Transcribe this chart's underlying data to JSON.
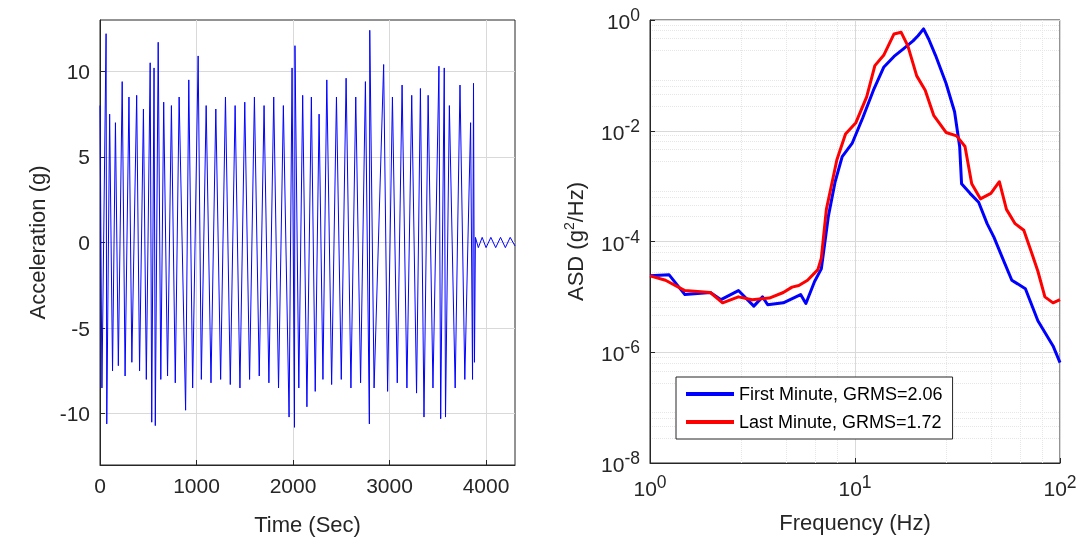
{
  "chart_data": [
    {
      "type": "line",
      "xlabel": "Time (Sec)",
      "ylabel": "Acceleration (g)",
      "color": "#0000ff",
      "xlim": [
        0,
        4300
      ],
      "ylim": [
        -13,
        13
      ],
      "xticks": [
        0,
        1000,
        2000,
        3000,
        4000
      ],
      "yticks": [
        -10,
        -5,
        0,
        5,
        10
      ],
      "grid": true,
      "x": [
        0,
        20,
        63,
        70,
        100,
        130,
        160,
        190,
        230,
        260,
        300,
        330,
        380,
        410,
        450,
        480,
        520,
        536,
        560,
        573,
        603,
        630,
        660,
        700,
        740,
        780,
        820,
        887,
        920,
        960,
        1017,
        1050,
        1100,
        1150,
        1200,
        1250,
        1300,
        1350,
        1400,
        1450,
        1500,
        1550,
        1600,
        1650,
        1700,
        1750,
        1800,
        1850,
        1900,
        1959,
        1990,
        2015,
        2020,
        2060,
        2100,
        2144,
        2190,
        2230,
        2270,
        2310,
        2350,
        2400,
        2450,
        2500,
        2550,
        2600,
        2650,
        2700,
        2750,
        2791,
        2795,
        2840,
        2939,
        2980,
        3030,
        3080,
        3130,
        3180,
        3230,
        3280,
        3320,
        3357,
        3400,
        3450,
        3512,
        3530,
        3567,
        3580,
        3620,
        3680,
        3730,
        3780,
        3840,
        3860,
        3870,
        3880,
        3890,
        3920,
        3960,
        4000,
        4050,
        4100,
        4150,
        4200,
        4250,
        4300
      ],
      "values": [
        8,
        -8.5,
        12.2,
        -10.6,
        7.5,
        -7.5,
        7,
        -7.2,
        9.4,
        -7.8,
        8.5,
        -7,
        8.6,
        -7.5,
        7.8,
        -8,
        10.5,
        -10.5,
        10.2,
        -10.7,
        11.7,
        -8,
        8.2,
        -7.8,
        8,
        -8.2,
        8.5,
        -9.8,
        9.5,
        -8.5,
        10.9,
        -8,
        8,
        -8.2,
        7.8,
        -8,
        8.5,
        -8.3,
        8,
        -8.5,
        8.2,
        -8,
        8.5,
        -7.8,
        8,
        -8.2,
        8.5,
        -8.5,
        8,
        -10.2,
        10.2,
        -10.8,
        11.5,
        -8.5,
        8.6,
        -9.6,
        8.5,
        -8.7,
        7.5,
        -8,
        9.5,
        -8.3,
        8.5,
        -8,
        9.6,
        -8.5,
        8.5,
        -8.2,
        9.4,
        -10.6,
        12.4,
        -8.5,
        10.4,
        -8.7,
        8.5,
        -8.2,
        9.2,
        -8.5,
        8.6,
        -8.8,
        9,
        -10.2,
        8.6,
        -8.5,
        10.3,
        -10.3,
        10.2,
        -10.2,
        8,
        -8.5,
        9.2,
        -8,
        7,
        -8,
        9.3,
        -7,
        0.3,
        -0.3,
        0.3,
        -0.3,
        0.3,
        -0.3,
        0.3,
        -0.3,
        0.3,
        -0.2
      ]
    },
    {
      "type": "line",
      "xlabel": "Frequency (Hz)",
      "ylabel": "ASD (g$^{2}$/Hz)",
      "log": "xy",
      "xlim": [
        1,
        100
      ],
      "ylim": [
        1e-08,
        1
      ],
      "xticks": [
        {
          "value": 1,
          "label": "10$^{0}$"
        },
        {
          "value": 10,
          "label": "10$^{1}$"
        },
        {
          "value": 100,
          "label": "10$^{2}$"
        }
      ],
      "yticks": [
        {
          "value": 1e-08,
          "label": "10$^{-8}$"
        },
        {
          "value": 1e-06,
          "label": "10$^{-6}$"
        },
        {
          "value": 0.0001,
          "label": "10$^{-4}$"
        },
        {
          "value": 0.01,
          "label": "10$^{-2}$"
        },
        {
          "value": 1,
          "label": "10$^{0}$"
        }
      ],
      "grid": true,
      "legend": "bottom left",
      "series": [
        {
          "name": "First Minute, GRMS=2.06",
          "color": "#0000ff",
          "x": [
            1,
            1.24,
            1.48,
            1.97,
            2.22,
            2.7,
            3.21,
            3.54,
            3.75,
            4.47,
            5.43,
            5.76,
            6.35,
            6.85,
            7.42,
            8.0,
            8.66,
            9.7,
            10.9,
            12.3,
            13.8,
            15.5,
            17.4,
            19.2,
            20.3,
            21.6,
            22.9,
            24.7,
            27.8,
            30.6,
            32.4,
            33.1,
            36.4,
            40.1,
            44.1,
            47.6,
            51.9,
            58.2,
            67.8,
            78,
            92.5,
            100
          ],
          "values": [
            2.4e-05,
            2.5e-05,
            1.1e-05,
            1.2e-05,
            8.9e-06,
            1.3e-05,
            6.8e-06,
            1e-05,
            7.2e-06,
            7.8e-06,
            1.1e-05,
            7.6e-06,
            1.9e-05,
            3.2e-05,
            0.00029,
            0.0012,
            0.0034,
            0.006,
            0.017,
            0.054,
            0.14,
            0.22,
            0.31,
            0.42,
            0.52,
            0.69,
            0.45,
            0.23,
            0.072,
            0.022,
            0.0052,
            0.0011,
            0.00074,
            0.00051,
            0.00021,
            0.00012,
            5.5e-05,
            2e-05,
            1.4e-05,
            3.7e-06,
            1.3e-06,
            6.5e-07
          ]
        },
        {
          "name": "Last Minute, GRMS=1.72",
          "color": "#ff0000",
          "x": [
            1,
            1.19,
            1.48,
            1.97,
            2.26,
            2.7,
            3.15,
            3.82,
            4.47,
            4.93,
            5.32,
            5.87,
            6.59,
            6.85,
            7.25,
            8.16,
            8.99,
            10.1,
            11.4,
            12.5,
            13.8,
            15.5,
            16.8,
            18.1,
            20.0,
            22.0,
            24.2,
            27.8,
            31.3,
            34.4,
            37.1,
            40.9,
            46.0,
            50.6,
            54.8,
            60.4,
            66.6,
            73.2,
            78,
            84.4,
            92.5,
            100
          ],
          "values": [
            2.4e-05,
            2e-05,
            1.3e-05,
            1.2e-05,
            7.8e-06,
            1e-05,
            8.9e-06,
            9.5e-06,
            1.2e-05,
            1.5e-05,
            1.6e-05,
            2e-05,
            3.1e-05,
            5e-05,
            0.00038,
            0.003,
            0.0087,
            0.014,
            0.041,
            0.15,
            0.23,
            0.56,
            0.6,
            0.34,
            0.098,
            0.054,
            0.019,
            0.0093,
            0.0081,
            0.0052,
            0.0011,
            0.00059,
            0.00074,
            0.0012,
            0.00038,
            0.00021,
            0.00016,
            5.8e-05,
            2.9e-05,
            1e-05,
            7.8e-06,
            8.9e-06
          ]
        }
      ]
    }
  ]
}
